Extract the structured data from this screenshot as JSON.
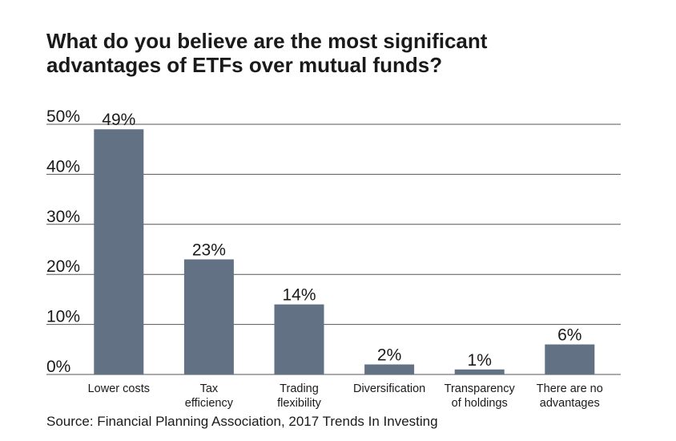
{
  "title_lines": [
    "What do you believe are the most significant",
    "advantages of ETFs over mutual funds?"
  ],
  "source": "Source: Financial Planning Association, 2017 Trends In Investing",
  "colors": {
    "bar": "#627284",
    "grid": "#555555",
    "text": "#1a1a1a"
  },
  "chart_data": {
    "type": "bar",
    "title": "What do you believe are the most significant advantages of ETFs over mutual funds?",
    "categories": [
      [
        "Lower costs"
      ],
      [
        "Tax",
        "efficiency"
      ],
      [
        "Trading",
        "flexibility"
      ],
      [
        "Diversification"
      ],
      [
        "Transparency",
        "of holdings"
      ],
      [
        "There are no",
        "advantages"
      ]
    ],
    "values": [
      49,
      23,
      14,
      2,
      1,
      6
    ],
    "value_labels": [
      "49%",
      "23%",
      "14%",
      "2%",
      "1%",
      "6%"
    ],
    "yticks": [
      "0%",
      "10%",
      "20%",
      "30%",
      "40%",
      "50%"
    ],
    "ylim": [
      0,
      50
    ],
    "grid": true,
    "xlabel": "",
    "ylabel": ""
  }
}
